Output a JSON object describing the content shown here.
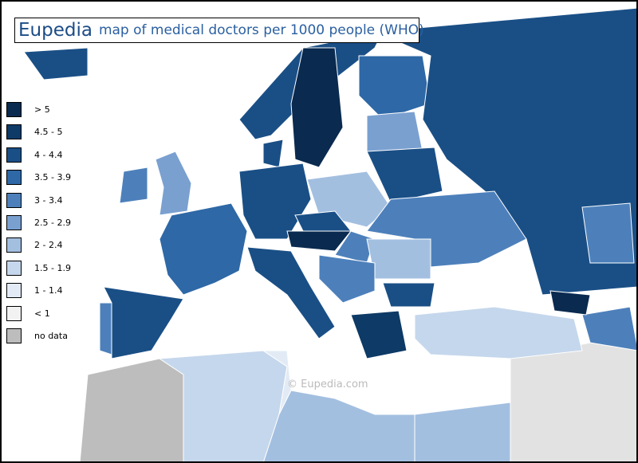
{
  "header": {
    "brand": "Eupedia",
    "title": "map of medical doctors per 1000 people (WHO)"
  },
  "legend": [
    {
      "label": "> 5",
      "color": "#0a2a4f"
    },
    {
      "label": "4.5 - 5",
      "color": "#0d3a66"
    },
    {
      "label": "4 - 4.4",
      "color": "#1a4f86"
    },
    {
      "label": "3.5 - 3.9",
      "color": "#2e68a6"
    },
    {
      "label": "3 - 3.4",
      "color": "#4d80bb"
    },
    {
      "label": "2.5 - 2.9",
      "color": "#7aa0d0"
    },
    {
      "label": "2 - 2.4",
      "color": "#a3bfe0"
    },
    {
      "label": "1.5 - 1.9",
      "color": "#c5d7ec"
    },
    {
      "label": "1 - 1.4",
      "color": "#e2ebf5"
    },
    {
      "label": "< 1",
      "color": "#f2f2f2"
    },
    {
      "label": "no data",
      "color": "#bdbdbd"
    }
  ],
  "watermark": "© Eupedia.com"
}
